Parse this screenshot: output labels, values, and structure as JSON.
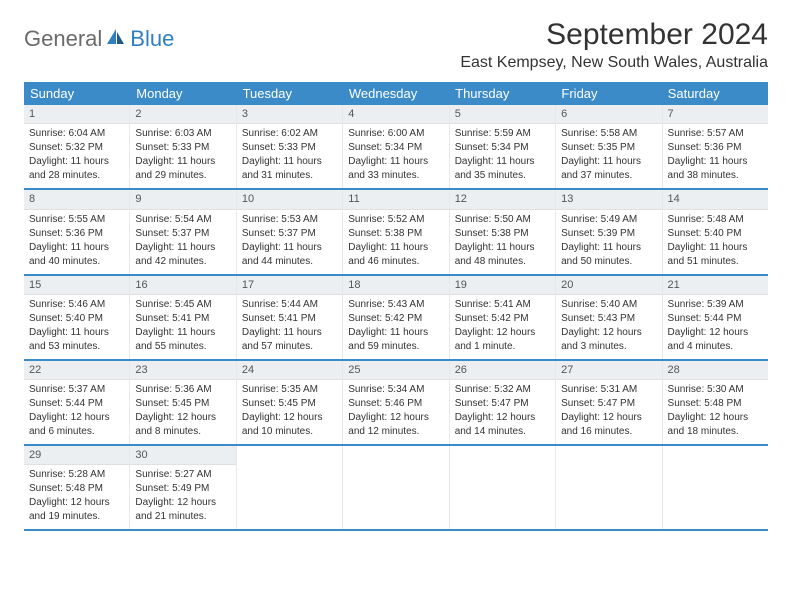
{
  "logo": {
    "part1": "General",
    "part2": "Blue"
  },
  "title": "September 2024",
  "location": "East Kempsey, New South Wales, Australia",
  "colors": {
    "header_bg": "#3b8bc9",
    "daynum_bg": "#eceff1",
    "rule": "#3b8bc9",
    "logo_gray": "#6b6b6b",
    "logo_blue": "#2f7fc1"
  },
  "weekdays": [
    "Sunday",
    "Monday",
    "Tuesday",
    "Wednesday",
    "Thursday",
    "Friday",
    "Saturday"
  ],
  "weeks": [
    [
      {
        "n": "1",
        "sr": "Sunrise: 6:04 AM",
        "ss": "Sunset: 5:32 PM",
        "d1": "Daylight: 11 hours",
        "d2": "and 28 minutes."
      },
      {
        "n": "2",
        "sr": "Sunrise: 6:03 AM",
        "ss": "Sunset: 5:33 PM",
        "d1": "Daylight: 11 hours",
        "d2": "and 29 minutes."
      },
      {
        "n": "3",
        "sr": "Sunrise: 6:02 AM",
        "ss": "Sunset: 5:33 PM",
        "d1": "Daylight: 11 hours",
        "d2": "and 31 minutes."
      },
      {
        "n": "4",
        "sr": "Sunrise: 6:00 AM",
        "ss": "Sunset: 5:34 PM",
        "d1": "Daylight: 11 hours",
        "d2": "and 33 minutes."
      },
      {
        "n": "5",
        "sr": "Sunrise: 5:59 AM",
        "ss": "Sunset: 5:34 PM",
        "d1": "Daylight: 11 hours",
        "d2": "and 35 minutes."
      },
      {
        "n": "6",
        "sr": "Sunrise: 5:58 AM",
        "ss": "Sunset: 5:35 PM",
        "d1": "Daylight: 11 hours",
        "d2": "and 37 minutes."
      },
      {
        "n": "7",
        "sr": "Sunrise: 5:57 AM",
        "ss": "Sunset: 5:36 PM",
        "d1": "Daylight: 11 hours",
        "d2": "and 38 minutes."
      }
    ],
    [
      {
        "n": "8",
        "sr": "Sunrise: 5:55 AM",
        "ss": "Sunset: 5:36 PM",
        "d1": "Daylight: 11 hours",
        "d2": "and 40 minutes."
      },
      {
        "n": "9",
        "sr": "Sunrise: 5:54 AM",
        "ss": "Sunset: 5:37 PM",
        "d1": "Daylight: 11 hours",
        "d2": "and 42 minutes."
      },
      {
        "n": "10",
        "sr": "Sunrise: 5:53 AM",
        "ss": "Sunset: 5:37 PM",
        "d1": "Daylight: 11 hours",
        "d2": "and 44 minutes."
      },
      {
        "n": "11",
        "sr": "Sunrise: 5:52 AM",
        "ss": "Sunset: 5:38 PM",
        "d1": "Daylight: 11 hours",
        "d2": "and 46 minutes."
      },
      {
        "n": "12",
        "sr": "Sunrise: 5:50 AM",
        "ss": "Sunset: 5:38 PM",
        "d1": "Daylight: 11 hours",
        "d2": "and 48 minutes."
      },
      {
        "n": "13",
        "sr": "Sunrise: 5:49 AM",
        "ss": "Sunset: 5:39 PM",
        "d1": "Daylight: 11 hours",
        "d2": "and 50 minutes."
      },
      {
        "n": "14",
        "sr": "Sunrise: 5:48 AM",
        "ss": "Sunset: 5:40 PM",
        "d1": "Daylight: 11 hours",
        "d2": "and 51 minutes."
      }
    ],
    [
      {
        "n": "15",
        "sr": "Sunrise: 5:46 AM",
        "ss": "Sunset: 5:40 PM",
        "d1": "Daylight: 11 hours",
        "d2": "and 53 minutes."
      },
      {
        "n": "16",
        "sr": "Sunrise: 5:45 AM",
        "ss": "Sunset: 5:41 PM",
        "d1": "Daylight: 11 hours",
        "d2": "and 55 minutes."
      },
      {
        "n": "17",
        "sr": "Sunrise: 5:44 AM",
        "ss": "Sunset: 5:41 PM",
        "d1": "Daylight: 11 hours",
        "d2": "and 57 minutes."
      },
      {
        "n": "18",
        "sr": "Sunrise: 5:43 AM",
        "ss": "Sunset: 5:42 PM",
        "d1": "Daylight: 11 hours",
        "d2": "and 59 minutes."
      },
      {
        "n": "19",
        "sr": "Sunrise: 5:41 AM",
        "ss": "Sunset: 5:42 PM",
        "d1": "Daylight: 12 hours",
        "d2": "and 1 minute."
      },
      {
        "n": "20",
        "sr": "Sunrise: 5:40 AM",
        "ss": "Sunset: 5:43 PM",
        "d1": "Daylight: 12 hours",
        "d2": "and 3 minutes."
      },
      {
        "n": "21",
        "sr": "Sunrise: 5:39 AM",
        "ss": "Sunset: 5:44 PM",
        "d1": "Daylight: 12 hours",
        "d2": "and 4 minutes."
      }
    ],
    [
      {
        "n": "22",
        "sr": "Sunrise: 5:37 AM",
        "ss": "Sunset: 5:44 PM",
        "d1": "Daylight: 12 hours",
        "d2": "and 6 minutes."
      },
      {
        "n": "23",
        "sr": "Sunrise: 5:36 AM",
        "ss": "Sunset: 5:45 PM",
        "d1": "Daylight: 12 hours",
        "d2": "and 8 minutes."
      },
      {
        "n": "24",
        "sr": "Sunrise: 5:35 AM",
        "ss": "Sunset: 5:45 PM",
        "d1": "Daylight: 12 hours",
        "d2": "and 10 minutes."
      },
      {
        "n": "25",
        "sr": "Sunrise: 5:34 AM",
        "ss": "Sunset: 5:46 PM",
        "d1": "Daylight: 12 hours",
        "d2": "and 12 minutes."
      },
      {
        "n": "26",
        "sr": "Sunrise: 5:32 AM",
        "ss": "Sunset: 5:47 PM",
        "d1": "Daylight: 12 hours",
        "d2": "and 14 minutes."
      },
      {
        "n": "27",
        "sr": "Sunrise: 5:31 AM",
        "ss": "Sunset: 5:47 PM",
        "d1": "Daylight: 12 hours",
        "d2": "and 16 minutes."
      },
      {
        "n": "28",
        "sr": "Sunrise: 5:30 AM",
        "ss": "Sunset: 5:48 PM",
        "d1": "Daylight: 12 hours",
        "d2": "and 18 minutes."
      }
    ],
    [
      {
        "n": "29",
        "sr": "Sunrise: 5:28 AM",
        "ss": "Sunset: 5:48 PM",
        "d1": "Daylight: 12 hours",
        "d2": "and 19 minutes."
      },
      {
        "n": "30",
        "sr": "Sunrise: 5:27 AM",
        "ss": "Sunset: 5:49 PM",
        "d1": "Daylight: 12 hours",
        "d2": "and 21 minutes."
      },
      null,
      null,
      null,
      null,
      null
    ]
  ]
}
